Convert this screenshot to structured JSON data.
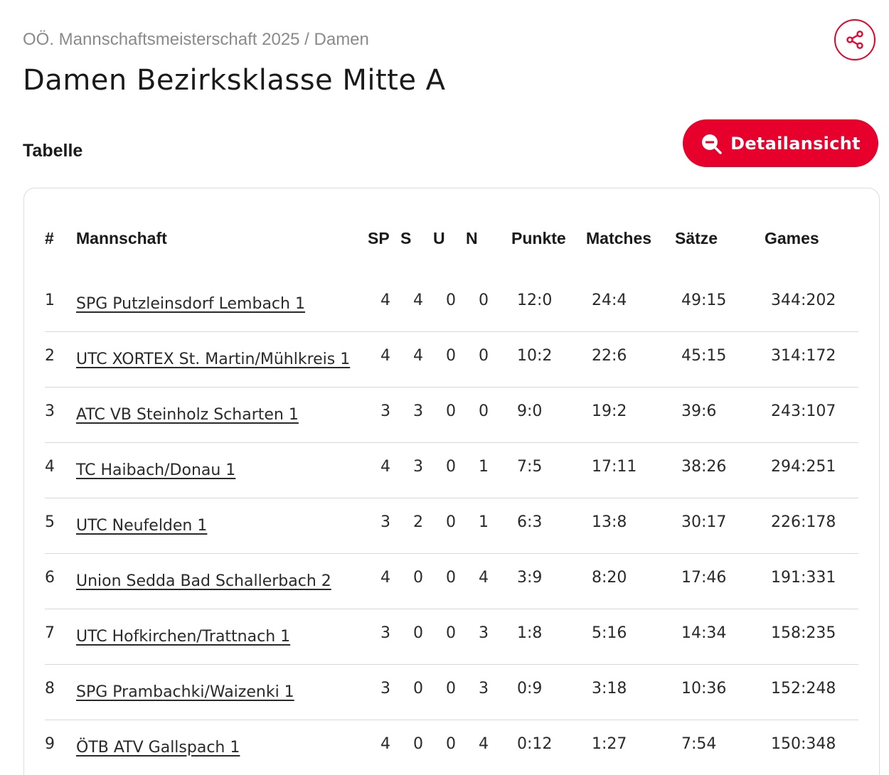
{
  "header": {
    "breadcrumb": "OÖ. Mannschaftsmeisterschaft 2025 / Damen",
    "title": "Damen Bezirksklasse Mitte A"
  },
  "share": {
    "icon": "share-icon"
  },
  "section": {
    "title": "Tabelle",
    "detail_button": "Detailansicht",
    "detail_icon": "zoom-out-icon"
  },
  "colors": {
    "accent": "#e8002d",
    "border": "#dcdcdc"
  },
  "table": {
    "columns": [
      "#",
      "Mannschaft",
      "SP",
      "S",
      "U",
      "N",
      "Punkte",
      "Matches",
      "Sätze",
      "Games"
    ],
    "rows": [
      {
        "rank": "1",
        "team": "SPG Putzleinsdorf Lembach 1",
        "sp": "4",
        "s": "4",
        "u": "0",
        "n": "0",
        "punkte": "12:0",
        "matches": "24:4",
        "saetze": "49:15",
        "games": "344:202"
      },
      {
        "rank": "2",
        "team": "UTC XORTEX St. Martin/Mühlkreis 1",
        "sp": "4",
        "s": "4",
        "u": "0",
        "n": "0",
        "punkte": "10:2",
        "matches": "22:6",
        "saetze": "45:15",
        "games": "314:172"
      },
      {
        "rank": "3",
        "team": "ATC VB Steinholz Scharten 1",
        "sp": "3",
        "s": "3",
        "u": "0",
        "n": "0",
        "punkte": "9:0",
        "matches": "19:2",
        "saetze": "39:6",
        "games": "243:107"
      },
      {
        "rank": "4",
        "team": "TC Haibach/Donau 1",
        "sp": "4",
        "s": "3",
        "u": "0",
        "n": "1",
        "punkte": "7:5",
        "matches": "17:11",
        "saetze": "38:26",
        "games": "294:251"
      },
      {
        "rank": "5",
        "team": "UTC Neufelden 1",
        "sp": "3",
        "s": "2",
        "u": "0",
        "n": "1",
        "punkte": "6:3",
        "matches": "13:8",
        "saetze": "30:17",
        "games": "226:178"
      },
      {
        "rank": "6",
        "team": "Union Sedda Bad Schallerbach 2",
        "sp": "4",
        "s": "0",
        "u": "0",
        "n": "4",
        "punkte": "3:9",
        "matches": "8:20",
        "saetze": "17:46",
        "games": "191:331"
      },
      {
        "rank": "7",
        "team": "UTC Hofkirchen/Trattnach 1",
        "sp": "3",
        "s": "0",
        "u": "0",
        "n": "3",
        "punkte": "1:8",
        "matches": "5:16",
        "saetze": "14:34",
        "games": "158:235"
      },
      {
        "rank": "8",
        "team": "SPG Prambachki/Waizenki 1",
        "sp": "3",
        "s": "0",
        "u": "0",
        "n": "3",
        "punkte": "0:9",
        "matches": "3:18",
        "saetze": "10:36",
        "games": "152:248"
      },
      {
        "rank": "9",
        "team": "ÖTB ATV Gallspach 1",
        "sp": "4",
        "s": "0",
        "u": "0",
        "n": "4",
        "punkte": "0:12",
        "matches": "1:27",
        "saetze": "7:54",
        "games": "150:348"
      }
    ]
  }
}
